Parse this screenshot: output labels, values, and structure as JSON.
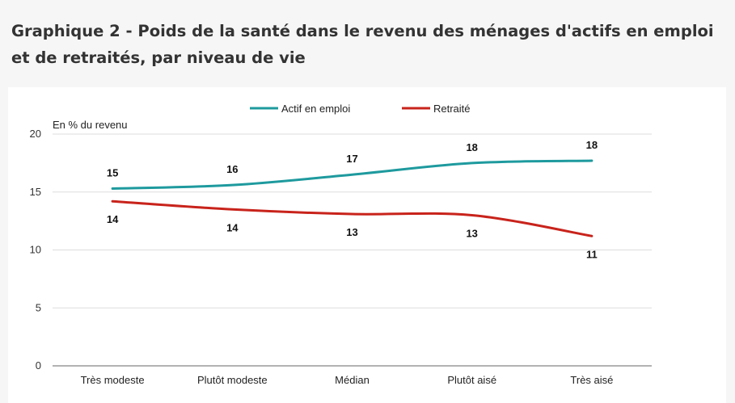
{
  "title": "Graphique 2 - Poids de la santé dans le revenu des ménages d'actifs en emploi et de retraités, par niveau de vie",
  "chart_data": {
    "type": "line",
    "title": "Graphique 2 - Poids de la santé dans le revenu des ménages d'actifs en emploi et de retraités, par niveau de vie",
    "ylabel": "En % du revenu",
    "xlabel": "",
    "categories": [
      "Très modeste",
      "Plutôt modeste",
      "Médian",
      "Plutôt aisé",
      "Très aisé"
    ],
    "ylim": [
      0,
      20
    ],
    "yticks": [
      "0",
      "5",
      "10",
      "15",
      "20"
    ],
    "grid": true,
    "legend_position": "top-center",
    "series": [
      {
        "name": "Actif en emploi",
        "color": "#1e9a9e",
        "values": [
          15.3,
          15.6,
          16.5,
          17.5,
          17.7
        ],
        "labels": [
          "15",
          "16",
          "17",
          "18",
          "18"
        ],
        "label_position": "above"
      },
      {
        "name": "Retraité",
        "color": "#c8231b",
        "values": [
          14.2,
          13.5,
          13.1,
          13.0,
          11.2
        ],
        "labels": [
          "14",
          "14",
          "13",
          "13",
          "11"
        ],
        "label_position": "below"
      }
    ]
  }
}
